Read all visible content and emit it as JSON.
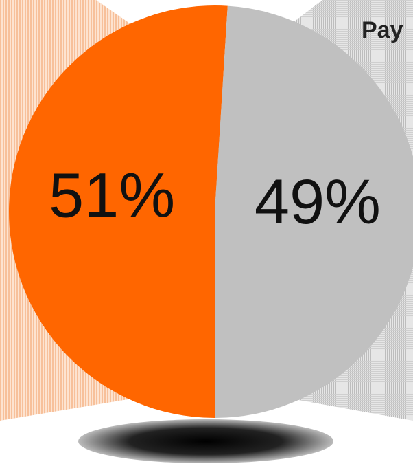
{
  "chart_data": {
    "type": "pie",
    "values": [
      51,
      49
    ],
    "value_labels": [
      "51%",
      "49%"
    ],
    "colors": [
      "#ff6600",
      "#c0c0c0"
    ],
    "annotation": "Pay"
  }
}
